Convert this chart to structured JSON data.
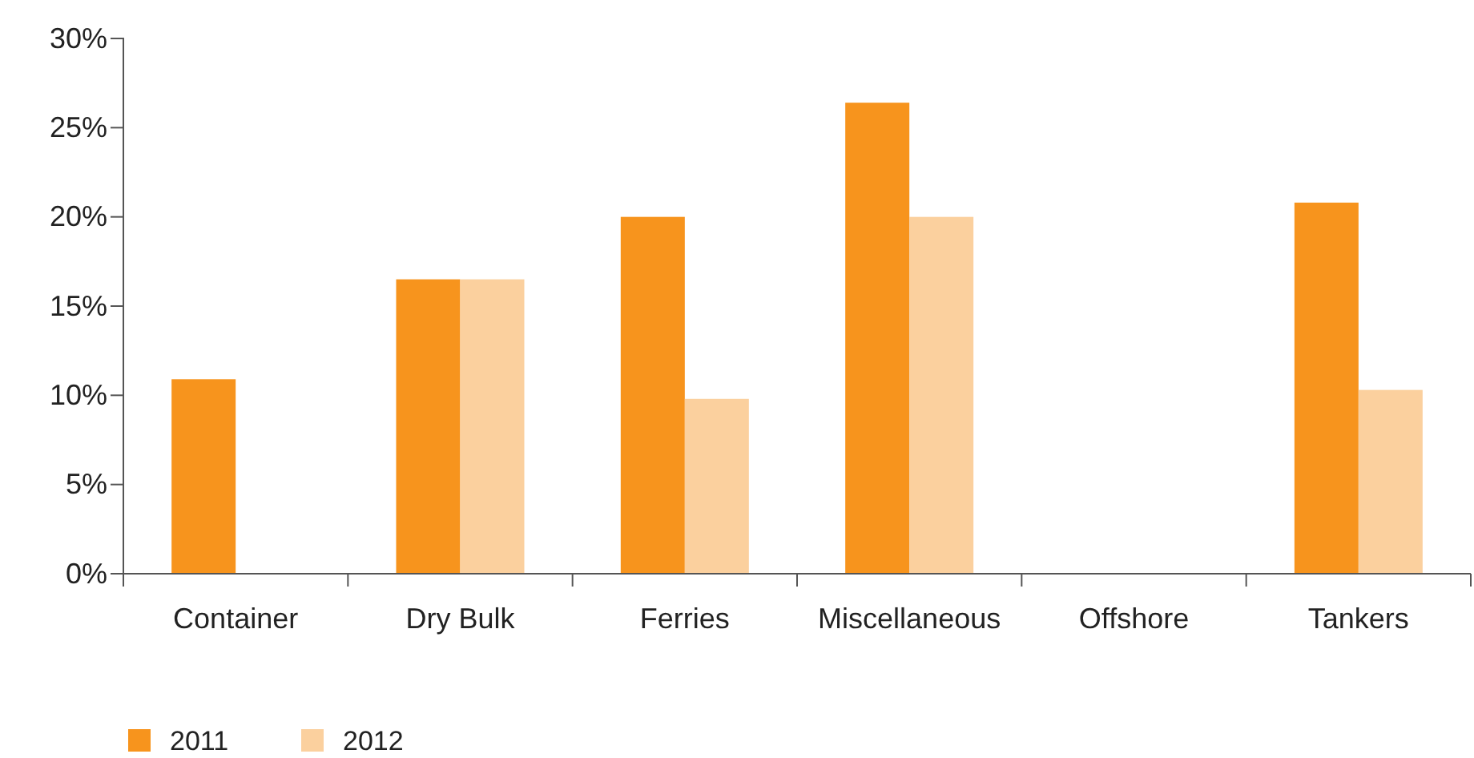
{
  "chart_data": {
    "type": "bar",
    "categories": [
      "Container",
      "Dry Bulk",
      "Ferries",
      "Miscellaneous",
      "Offshore",
      "Tankers"
    ],
    "series": [
      {
        "name": "2011",
        "color": "#f7941d",
        "values": [
          10.9,
          16.5,
          20,
          26.4,
          null,
          20.8
        ]
      },
      {
        "name": "2012",
        "color": "#fbd09e",
        "values": [
          null,
          16.5,
          9.8,
          20,
          null,
          10.3
        ]
      }
    ],
    "ylim": [
      0,
      30
    ],
    "yticks": [
      {
        "value": 0,
        "label": "0%"
      },
      {
        "value": 5,
        "label": "5%"
      },
      {
        "value": 10,
        "label": "10%"
      },
      {
        "value": 15,
        "label": "15%"
      },
      {
        "value": 20,
        "label": "20%"
      },
      {
        "value": 25,
        "label": "25%"
      },
      {
        "value": 30,
        "label": "30%"
      }
    ],
    "grid": false,
    "legend": "bottom left"
  }
}
